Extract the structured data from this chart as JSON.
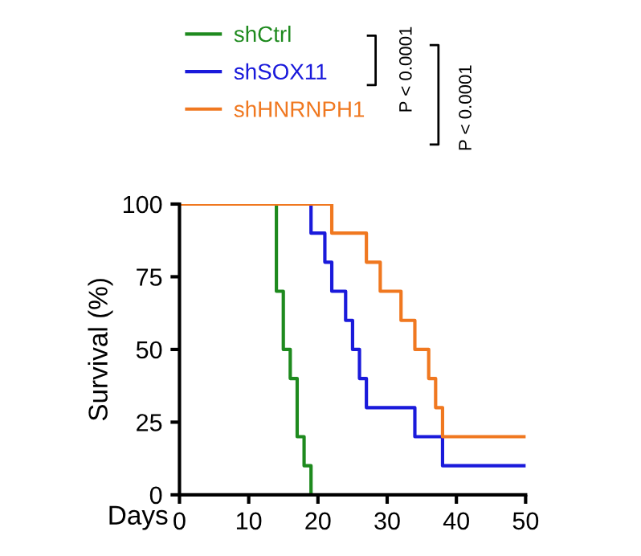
{
  "chart_data": {
    "type": "step",
    "xlabel": "Days",
    "ylabel": "Survival (%)",
    "series": [
      {
        "name": "shCtrl",
        "color": "#1e8a1e",
        "x": [
          0,
          14,
          15,
          16,
          17,
          18,
          19
        ],
        "values": [
          100,
          70,
          50,
          40,
          20,
          10,
          0
        ]
      },
      {
        "name": "shSOX11",
        "color": "#1a1adb",
        "x": [
          0,
          19,
          21,
          22,
          24,
          25,
          26,
          27,
          34,
          38,
          50
        ],
        "values": [
          100,
          90,
          80,
          70,
          60,
          50,
          40,
          30,
          20,
          10,
          10
        ]
      },
      {
        "name": "shHNRNPH1",
        "color": "#f07820",
        "x": [
          0,
          22,
          27,
          29,
          32,
          34,
          36,
          37,
          38,
          50
        ],
        "values": [
          100,
          90,
          80,
          70,
          60,
          50,
          40,
          30,
          20,
          20
        ]
      }
    ],
    "xlim": [
      0,
      50
    ],
    "xticks": [
      0,
      10,
      20,
      30,
      40,
      50
    ],
    "ylim": [
      0,
      100
    ],
    "yticks": [
      0,
      25,
      50,
      75,
      100
    ],
    "legend": "top",
    "grid": false,
    "annotations": [
      "P < 0.0001",
      "P < 0.0001"
    ]
  }
}
